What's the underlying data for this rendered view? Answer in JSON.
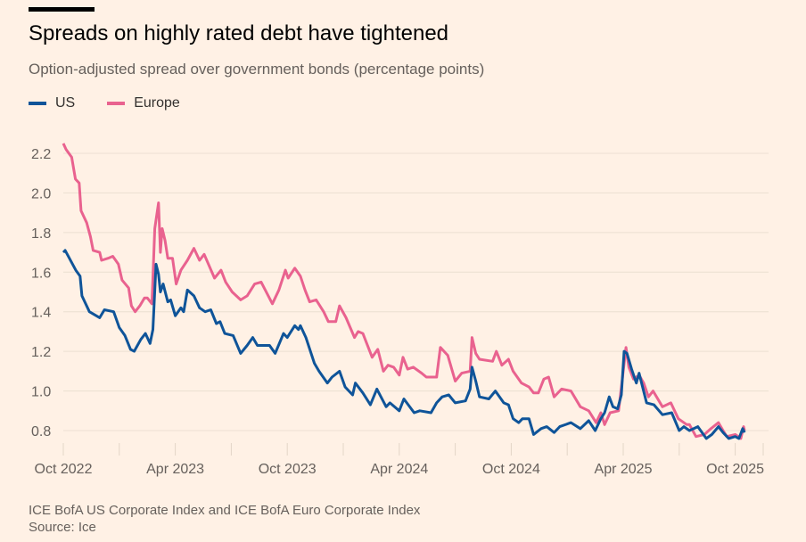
{
  "chart_data": {
    "type": "line",
    "title": "Spreads on highly rated debt have tightened",
    "subtitle": "Option-adjusted spread over government bonds (percentage points)",
    "xlabel": "",
    "ylabel": "",
    "x_unit": "months since Oct 2022",
    "xlim": [
      0,
      37.5
    ],
    "ylim": [
      0.8,
      2.2
    ],
    "yticks": [
      0.8,
      1.0,
      1.2,
      1.4,
      1.6,
      1.8,
      2.0,
      2.2
    ],
    "ytick_labels": [
      "0.8",
      "1.0",
      "1.2",
      "1.4",
      "1.6",
      "1.8",
      "2.0",
      "2.2"
    ],
    "xticks_minor": [
      3,
      9,
      15,
      21,
      27,
      33,
      37.5
    ],
    "xticks": [
      {
        "x": 0,
        "label": "Oct 2022"
      },
      {
        "x": 6,
        "label": "Apr 2023"
      },
      {
        "x": 12,
        "label": "Oct 2023"
      },
      {
        "x": 18,
        "label": "Apr 2024"
      },
      {
        "x": 24,
        "label": "Oct 2024"
      },
      {
        "x": 30,
        "label": "Apr 2025"
      },
      {
        "x": 36,
        "label": "Oct 2025"
      }
    ],
    "grid": true,
    "legend_position": "top-left",
    "series": [
      {
        "name": "US",
        "color": "#0f5499",
        "points": [
          [
            0,
            1.7
          ],
          [
            0.1,
            1.71
          ],
          [
            0.67,
            1.61
          ],
          [
            0.9,
            1.58
          ],
          [
            1.0,
            1.48
          ],
          [
            1.4,
            1.4
          ],
          [
            1.95,
            1.37
          ],
          [
            2.2,
            1.41
          ],
          [
            2.7,
            1.4
          ],
          [
            3.0,
            1.32
          ],
          [
            3.3,
            1.28
          ],
          [
            3.6,
            1.21
          ],
          [
            3.8,
            1.2
          ],
          [
            4.15,
            1.26
          ],
          [
            4.4,
            1.29
          ],
          [
            4.65,
            1.24
          ],
          [
            4.8,
            1.31
          ],
          [
            4.97,
            1.64
          ],
          [
            5.1,
            1.59
          ],
          [
            5.2,
            1.5
          ],
          [
            5.35,
            1.54
          ],
          [
            5.6,
            1.45
          ],
          [
            5.75,
            1.46
          ],
          [
            6.0,
            1.38
          ],
          [
            6.3,
            1.42
          ],
          [
            6.45,
            1.4
          ],
          [
            6.65,
            1.51
          ],
          [
            7.0,
            1.48
          ],
          [
            7.3,
            1.42
          ],
          [
            7.6,
            1.4
          ],
          [
            7.9,
            1.41
          ],
          [
            8.2,
            1.34
          ],
          [
            8.4,
            1.35
          ],
          [
            8.65,
            1.29
          ],
          [
            9.1,
            1.28
          ],
          [
            9.5,
            1.19
          ],
          [
            9.85,
            1.23
          ],
          [
            10.15,
            1.27
          ],
          [
            10.4,
            1.23
          ],
          [
            11.05,
            1.23
          ],
          [
            11.35,
            1.19
          ],
          [
            11.8,
            1.29
          ],
          [
            12.0,
            1.27
          ],
          [
            12.4,
            1.33
          ],
          [
            12.6,
            1.31
          ],
          [
            12.7,
            1.33
          ],
          [
            13.0,
            1.27
          ],
          [
            13.45,
            1.14
          ],
          [
            13.7,
            1.1
          ],
          [
            14.15,
            1.04
          ],
          [
            14.4,
            1.07
          ],
          [
            14.8,
            1.1
          ],
          [
            15.1,
            1.02
          ],
          [
            15.5,
            0.98
          ],
          [
            15.65,
            1.04
          ],
          [
            16.05,
            0.99
          ],
          [
            16.45,
            0.93
          ],
          [
            16.8,
            1.01
          ],
          [
            17.3,
            0.92
          ],
          [
            17.5,
            0.94
          ],
          [
            18.0,
            0.9
          ],
          [
            18.25,
            0.96
          ],
          [
            18.8,
            0.89
          ],
          [
            19.1,
            0.9
          ],
          [
            19.7,
            0.89
          ],
          [
            20.0,
            0.94
          ],
          [
            20.3,
            0.97
          ],
          [
            20.65,
            0.98
          ],
          [
            21.0,
            0.94
          ],
          [
            21.55,
            0.95
          ],
          [
            21.8,
            1.01
          ],
          [
            21.9,
            1.12
          ],
          [
            22.1,
            1.05
          ],
          [
            22.3,
            0.97
          ],
          [
            22.8,
            0.96
          ],
          [
            23.15,
            1.0
          ],
          [
            23.6,
            0.94
          ],
          [
            23.85,
            0.93
          ],
          [
            24.1,
            0.86
          ],
          [
            24.4,
            0.84
          ],
          [
            24.6,
            0.86
          ],
          [
            24.95,
            0.86
          ],
          [
            25.2,
            0.78
          ],
          [
            25.6,
            0.81
          ],
          [
            25.9,
            0.82
          ],
          [
            26.3,
            0.79
          ],
          [
            26.6,
            0.82
          ],
          [
            27.2,
            0.84
          ],
          [
            27.7,
            0.81
          ],
          [
            28.15,
            0.85
          ],
          [
            28.5,
            0.8
          ],
          [
            28.8,
            0.86
          ],
          [
            29.0,
            0.89
          ],
          [
            29.25,
            0.97
          ],
          [
            29.45,
            0.92
          ],
          [
            29.7,
            0.91
          ],
          [
            29.9,
            0.98
          ],
          [
            30.05,
            1.2
          ],
          [
            30.2,
            1.19
          ],
          [
            30.45,
            1.11
          ],
          [
            30.7,
            1.04
          ],
          [
            30.85,
            1.09
          ],
          [
            31.25,
            0.94
          ],
          [
            31.65,
            0.93
          ],
          [
            32.1,
            0.88
          ],
          [
            32.6,
            0.89
          ],
          [
            33.0,
            0.8
          ],
          [
            33.25,
            0.82
          ],
          [
            33.55,
            0.8
          ],
          [
            34.0,
            0.82
          ],
          [
            34.45,
            0.76
          ],
          [
            34.75,
            0.78
          ],
          [
            35.1,
            0.82
          ],
          [
            35.35,
            0.79
          ],
          [
            35.65,
            0.76
          ],
          [
            36.0,
            0.77
          ],
          [
            36.2,
            0.76
          ],
          [
            36.4,
            0.81
          ],
          [
            36.5,
            0.79
          ]
        ]
      },
      {
        "name": "Europe",
        "color": "#e9628f",
        "points": [
          [
            0,
            2.25
          ],
          [
            0.15,
            2.22
          ],
          [
            0.45,
            2.18
          ],
          [
            0.65,
            2.07
          ],
          [
            0.85,
            2.05
          ],
          [
            0.95,
            1.91
          ],
          [
            1.25,
            1.85
          ],
          [
            1.45,
            1.78
          ],
          [
            1.6,
            1.71
          ],
          [
            1.95,
            1.7
          ],
          [
            2.05,
            1.66
          ],
          [
            2.4,
            1.67
          ],
          [
            2.65,
            1.68
          ],
          [
            2.95,
            1.64
          ],
          [
            3.15,
            1.56
          ],
          [
            3.5,
            1.52
          ],
          [
            3.65,
            1.43
          ],
          [
            3.85,
            1.4
          ],
          [
            4.1,
            1.43
          ],
          [
            4.35,
            1.47
          ],
          [
            4.5,
            1.47
          ],
          [
            4.75,
            1.44
          ],
          [
            4.9,
            1.82
          ],
          [
            5.1,
            1.95
          ],
          [
            5.2,
            1.7
          ],
          [
            5.3,
            1.82
          ],
          [
            5.45,
            1.76
          ],
          [
            5.6,
            1.67
          ],
          [
            5.85,
            1.67
          ],
          [
            6.05,
            1.54
          ],
          [
            6.3,
            1.61
          ],
          [
            6.65,
            1.66
          ],
          [
            7.0,
            1.72
          ],
          [
            7.3,
            1.66
          ],
          [
            7.55,
            1.69
          ],
          [
            8.1,
            1.57
          ],
          [
            8.45,
            1.61
          ],
          [
            8.7,
            1.55
          ],
          [
            9.05,
            1.5
          ],
          [
            9.5,
            1.46
          ],
          [
            9.85,
            1.48
          ],
          [
            10.25,
            1.54
          ],
          [
            10.6,
            1.55
          ],
          [
            11.2,
            1.44
          ],
          [
            11.55,
            1.51
          ],
          [
            11.9,
            1.61
          ],
          [
            12.05,
            1.57
          ],
          [
            12.4,
            1.62
          ],
          [
            12.7,
            1.58
          ],
          [
            12.95,
            1.51
          ],
          [
            13.2,
            1.45
          ],
          [
            13.55,
            1.46
          ],
          [
            13.95,
            1.4
          ],
          [
            14.2,
            1.35
          ],
          [
            14.6,
            1.35
          ],
          [
            14.8,
            1.43
          ],
          [
            15.15,
            1.37
          ],
          [
            15.6,
            1.27
          ],
          [
            15.8,
            1.3
          ],
          [
            16.05,
            1.29
          ],
          [
            16.55,
            1.17
          ],
          [
            16.85,
            1.21
          ],
          [
            17.15,
            1.1
          ],
          [
            17.4,
            1.13
          ],
          [
            17.7,
            1.12
          ],
          [
            18.0,
            1.08
          ],
          [
            18.2,
            1.17
          ],
          [
            18.45,
            1.11
          ],
          [
            18.75,
            1.12
          ],
          [
            19.2,
            1.09
          ],
          [
            19.45,
            1.07
          ],
          [
            20.0,
            1.07
          ],
          [
            20.2,
            1.22
          ],
          [
            20.6,
            1.18
          ],
          [
            21.0,
            1.05
          ],
          [
            21.35,
            1.09
          ],
          [
            21.8,
            1.1
          ],
          [
            21.9,
            1.27
          ],
          [
            22.1,
            1.19
          ],
          [
            22.3,
            1.16
          ],
          [
            23.0,
            1.15
          ],
          [
            23.2,
            1.2
          ],
          [
            23.5,
            1.13
          ],
          [
            23.85,
            1.16
          ],
          [
            24.1,
            1.1
          ],
          [
            24.55,
            1.04
          ],
          [
            24.95,
            1.02
          ],
          [
            25.2,
            0.99
          ],
          [
            25.45,
            0.99
          ],
          [
            25.75,
            1.06
          ],
          [
            26.0,
            1.07
          ],
          [
            26.3,
            0.97
          ],
          [
            26.7,
            1.01
          ],
          [
            27.2,
            1.0
          ],
          [
            27.7,
            0.92
          ],
          [
            28.15,
            0.9
          ],
          [
            28.55,
            0.84
          ],
          [
            28.8,
            0.89
          ],
          [
            29.0,
            0.83
          ],
          [
            29.3,
            0.89
          ],
          [
            29.75,
            0.9
          ],
          [
            29.95,
            1.06
          ],
          [
            30.15,
            1.22
          ],
          [
            30.3,
            1.12
          ],
          [
            30.55,
            1.06
          ],
          [
            30.85,
            1.08
          ],
          [
            31.1,
            1.04
          ],
          [
            31.35,
            0.97
          ],
          [
            31.6,
            1.0
          ],
          [
            32.1,
            0.92
          ],
          [
            32.55,
            0.94
          ],
          [
            32.95,
            0.86
          ],
          [
            33.4,
            0.83
          ],
          [
            33.55,
            0.83
          ],
          [
            33.9,
            0.77
          ],
          [
            34.35,
            0.78
          ],
          [
            34.7,
            0.81
          ],
          [
            35.1,
            0.84
          ],
          [
            35.35,
            0.8
          ],
          [
            35.55,
            0.77
          ],
          [
            36.0,
            0.78
          ],
          [
            36.3,
            0.76
          ],
          [
            36.45,
            0.82
          ],
          [
            36.5,
            0.8
          ]
        ]
      }
    ],
    "footnote": "ICE BofA US Corporate Index and ICE BofA Euro Corporate Index",
    "source": "Source: Ice"
  }
}
